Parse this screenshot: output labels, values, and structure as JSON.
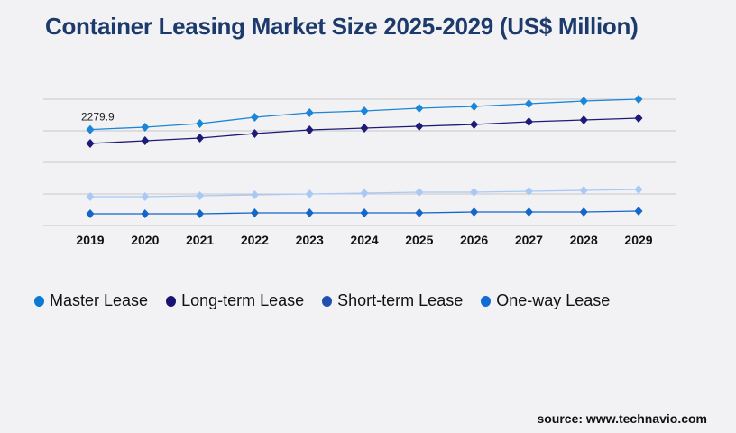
{
  "chart_data": {
    "type": "line",
    "title": "Container Leasing Market Size 2025-2029 (US$ Million)",
    "categories": [
      "2019",
      "2020",
      "2021",
      "2022",
      "2023",
      "2024",
      "2025",
      "2026",
      "2027",
      "2028",
      "2029"
    ],
    "ylim": [
      0,
      3000
    ],
    "grid": true,
    "legend_position": "bottom",
    "annotation": "2279.9",
    "series": [
      {
        "name": "Master Lease",
        "color": "#1a86d8",
        "legend_color": "#0a7ad6",
        "values": [
          2279.9,
          2336,
          2421,
          2571,
          2679,
          2721,
          2786,
          2829,
          2893,
          2957,
          3000
        ]
      },
      {
        "name": "Long-term Lease",
        "color": "#1e1a78",
        "legend_color": "#1a1270",
        "values": [
          1950,
          2014,
          2079,
          2186,
          2271,
          2314,
          2357,
          2400,
          2464,
          2507,
          2550
        ]
      },
      {
        "name": "Short-term Lease",
        "color": "#a9c9f5",
        "legend_color": "#1f4fb0",
        "values": [
          686,
          686,
          707,
          729,
          750,
          771,
          793,
          793,
          814,
          836,
          857
        ]
      },
      {
        "name": "One-way Lease",
        "color": "#1466c8",
        "legend_color": "#0f6cd2",
        "values": [
          279,
          279,
          279,
          300,
          300,
          300,
          300,
          321,
          321,
          321,
          343
        ]
      }
    ]
  },
  "source": "source: www.technavio.com"
}
